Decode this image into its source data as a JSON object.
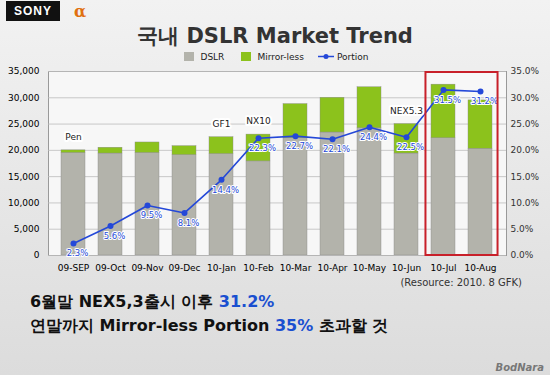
{
  "chart_data": {
    "type": "bar",
    "title": "국내 DSLR Market Trend",
    "stacked": true,
    "categories": [
      "09-SEP",
      "09-Oct",
      "09-Nov",
      "09-Dec",
      "10-Jan",
      "10-Feb",
      "10-Mar",
      "10-Apr",
      "10-May",
      "10-Jun",
      "10-Jul",
      "10-Aug"
    ],
    "series": [
      {
        "name": "DSLR",
        "color": "#b3b3ab",
        "values": [
          19500,
          19400,
          19500,
          19100,
          19300,
          17900,
          22300,
          23400,
          24200,
          19400,
          22300,
          20300
        ]
      },
      {
        "name": "Mirror-less",
        "color": "#8cc21c",
        "values": [
          500,
          1100,
          2000,
          1700,
          3200,
          5100,
          6500,
          6600,
          7800,
          5600,
          10200,
          9200
        ]
      },
      {
        "name": "Portion",
        "type": "line",
        "axis": "y2",
        "color": "#2448d8",
        "marker": "circle",
        "data_labels": true,
        "values": [
          2.3,
          5.6,
          9.5,
          8.1,
          14.4,
          22.3,
          22.7,
          22.1,
          24.4,
          22.5,
          31.5,
          31.2
        ],
        "value_labels": [
          "2.3%",
          "5.6%",
          "9.5%",
          "8.1%",
          "14.4%",
          "22.3%",
          "22.7%",
          "22.1%",
          "24.4%",
          "22.5%",
          "31.5%",
          "31.2%"
        ]
      }
    ],
    "ylim": [
      0,
      35000
    ],
    "yticks": [
      0,
      {
        "value": 5000,
        "label": "5,000"
      },
      {
        "value": 10000,
        "label": "10,000"
      },
      {
        "value": 15000,
        "label": "15,000"
      },
      {
        "value": 20000,
        "label": "20,000"
      },
      {
        "value": 25000,
        "label": "25,000"
      },
      {
        "value": 30000,
        "label": "30,000"
      },
      {
        "value": 35000,
        "label": "35,000"
      }
    ],
    "y2lim": [
      0,
      35
    ],
    "y2ticks": [
      {
        "value": 0,
        "label": "0.0%"
      },
      {
        "value": 5,
        "label": "5.0%"
      },
      {
        "value": 10,
        "label": "10.0%"
      },
      {
        "value": 15,
        "label": "15.0%"
      },
      {
        "value": 20,
        "label": "20.0%"
      },
      {
        "value": 25,
        "label": "25.0%"
      },
      {
        "value": 30,
        "label": "30.0%"
      },
      {
        "value": 35,
        "label": "35.0%"
      }
    ],
    "grid": true,
    "legend": "top",
    "annotations": [
      {
        "x": "09-SEP",
        "text": "Pen"
      },
      {
        "x": "10-Jan",
        "text": "GF1"
      },
      {
        "x": "10-Feb",
        "text": "NX10"
      },
      {
        "x": "10-Jun",
        "text": "NEX5.3"
      }
    ],
    "source": "(Resource: 2010. 8 GFK)"
  },
  "header": {
    "brand": "SONY",
    "logo": "α"
  },
  "conclusion": [
    [
      "6월말 NEX5,3출시 이후 ",
      "31.2%"
    ],
    [
      "연말까지 Mirror-less Portion ",
      "35%",
      " 초과할 것"
    ]
  ],
  "watermark": "BodNara"
}
